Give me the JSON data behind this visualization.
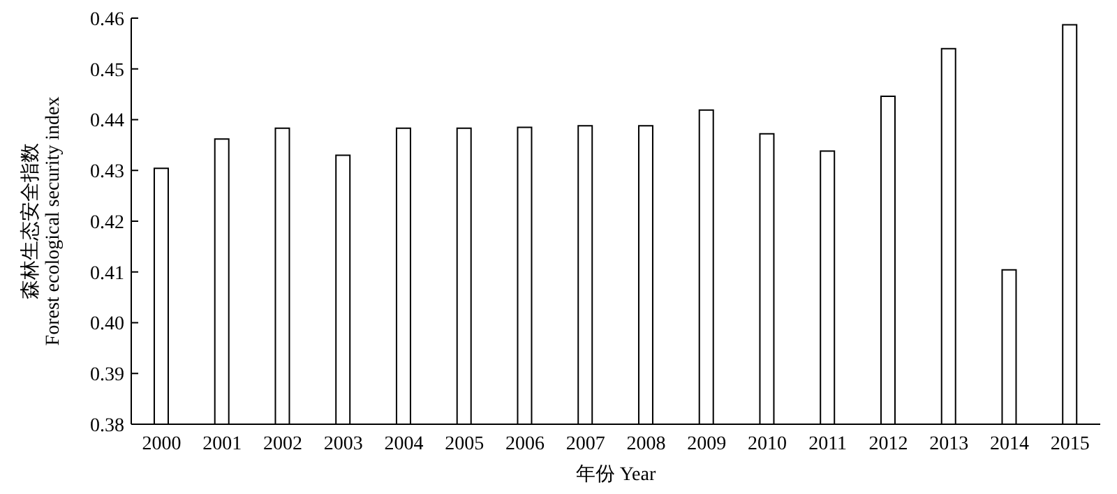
{
  "chart_data": {
    "type": "bar",
    "xlabel": "年份 Year",
    "ylabel": "森林生态安全指数\nForest ecological security index",
    "categories": [
      "2000",
      "2001",
      "2002",
      "2003",
      "2004",
      "2005",
      "2006",
      "2007",
      "2008",
      "2009",
      "2010",
      "2011",
      "2012",
      "2013",
      "2014",
      "2015"
    ],
    "values": [
      0.4304,
      0.4362,
      0.4383,
      0.433,
      0.4383,
      0.4383,
      0.4385,
      0.4388,
      0.4388,
      0.4419,
      0.4372,
      0.4338,
      0.4446,
      0.454,
      0.4104,
      0.4587
    ],
    "color": "#ffffff",
    "ylim": [
      0.38,
      0.46
    ],
    "yticks": [
      {
        "value": 0.38,
        "label": "0.38"
      },
      {
        "value": 0.39,
        "label": "0.39"
      },
      {
        "value": 0.4,
        "label": "0.40"
      },
      {
        "value": 0.41,
        "label": "0.41"
      },
      {
        "value": 0.42,
        "label": "0.42"
      },
      {
        "value": 0.43,
        "label": "0.43"
      },
      {
        "value": 0.44,
        "label": "0.44"
      },
      {
        "value": 0.45,
        "label": "0.45"
      },
      {
        "value": 0.46,
        "label": "0.46"
      }
    ],
    "grid": false,
    "legend": false
  }
}
